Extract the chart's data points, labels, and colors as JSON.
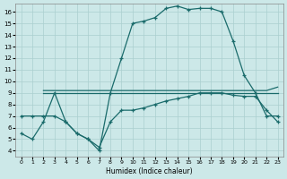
{
  "xlabel": "Humidex (Indice chaleur)",
  "bg_color": "#cce8e8",
  "grid_color": "#aacfcf",
  "line_color": "#1a6b6b",
  "xlim": [
    -0.5,
    23.5
  ],
  "ylim": [
    3.5,
    16.7
  ],
  "xticks": [
    0,
    1,
    2,
    3,
    4,
    5,
    6,
    7,
    8,
    9,
    10,
    11,
    12,
    13,
    14,
    15,
    16,
    17,
    18,
    19,
    20,
    21,
    22,
    23
  ],
  "yticks": [
    4,
    5,
    6,
    7,
    8,
    9,
    10,
    11,
    12,
    13,
    14,
    15,
    16
  ],
  "curve1_x": [
    0,
    1,
    2,
    3,
    4,
    5,
    6,
    7,
    8,
    9,
    10,
    11,
    12,
    13,
    14,
    15,
    16,
    17,
    18,
    19,
    20,
    21,
    22,
    23
  ],
  "curve1_y": [
    5.5,
    5.0,
    6.5,
    9.0,
    6.5,
    5.5,
    5.0,
    4.0,
    9.0,
    12.0,
    15.0,
    15.2,
    15.5,
    16.3,
    16.5,
    16.2,
    16.3,
    16.3,
    16.0,
    13.5,
    10.5,
    9.0,
    7.0,
    7.0
  ],
  "curve2_x": [
    2,
    3,
    4,
    5,
    6,
    7,
    8,
    9,
    10,
    11,
    12,
    13,
    14,
    15,
    16,
    17,
    18,
    19,
    20,
    21,
    22,
    23
  ],
  "curve2_y": [
    9.2,
    9.2,
    9.2,
    9.2,
    9.2,
    9.2,
    9.2,
    9.2,
    9.2,
    9.2,
    9.2,
    9.2,
    9.2,
    9.2,
    9.2,
    9.2,
    9.2,
    9.2,
    9.2,
    9.2,
    9.2,
    9.5
  ],
  "curve3_x": [
    2,
    3,
    4,
    5,
    6,
    7,
    8,
    9,
    10,
    11,
    12,
    13,
    14,
    15,
    16,
    17,
    18,
    19,
    20,
    21,
    22,
    23
  ],
  "curve3_y": [
    9.0,
    9.0,
    9.0,
    9.0,
    9.0,
    9.0,
    9.0,
    9.0,
    9.0,
    9.0,
    9.0,
    9.0,
    9.0,
    9.0,
    9.0,
    9.0,
    9.0,
    9.0,
    9.0,
    9.0,
    9.0,
    9.0
  ],
  "curve4_x": [
    0,
    1,
    2,
    3,
    4,
    5,
    6,
    7,
    8,
    9,
    10,
    11,
    12,
    13,
    14,
    15,
    16,
    17,
    18,
    19,
    20,
    21,
    22,
    23
  ],
  "curve4_y": [
    7.0,
    7.0,
    7.0,
    7.0,
    6.5,
    5.5,
    5.0,
    4.3,
    6.5,
    7.5,
    7.5,
    7.7,
    8.0,
    8.3,
    8.5,
    8.7,
    9.0,
    9.0,
    9.0,
    8.8,
    8.7,
    8.7,
    7.5,
    6.5
  ]
}
